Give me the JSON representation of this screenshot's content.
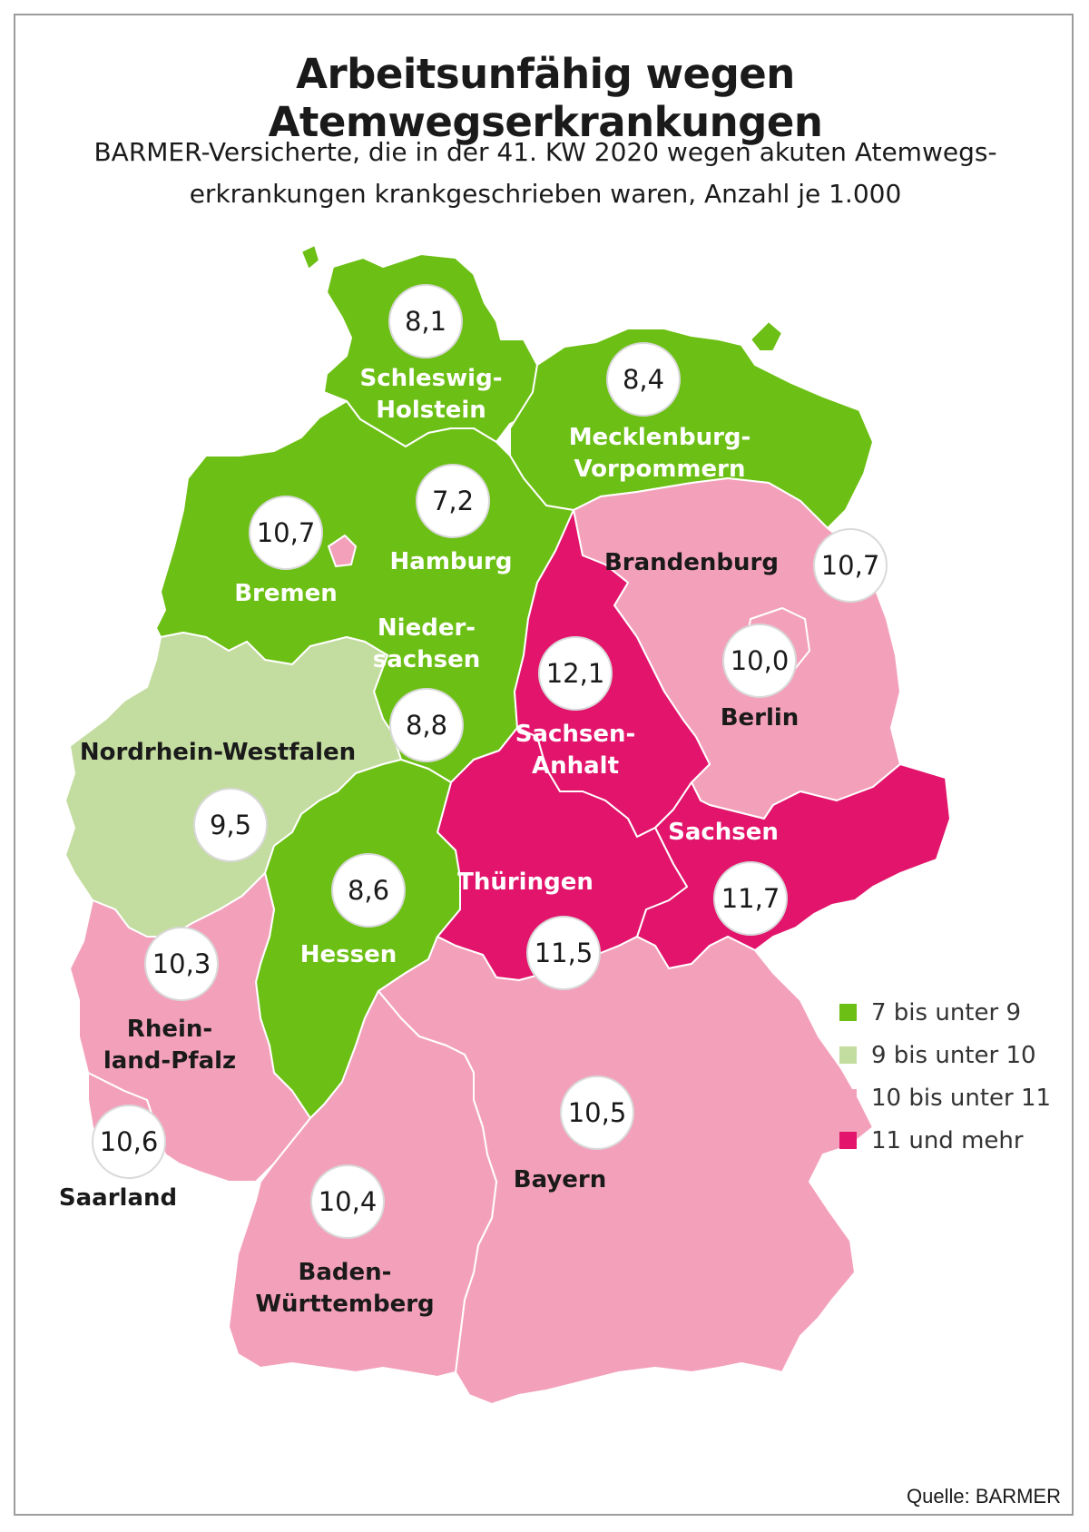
{
  "title": "Arbeitsunfähig wegen Atemwegserkrankungen",
  "subtitle_line1": "BARMER-Versicherte, die in der 41. KW 2020 wegen akuten Atemwegs-",
  "subtitle_line2": "erkrankungen krankgeschrieben waren, Anzahl je 1.000",
  "colors": {
    "class_7_9": "#6cbf14",
    "class_9_10": "#c3dc9f",
    "class_10_11": "#f3a1bb",
    "class_11_plus": "#e2146b"
  },
  "legend": [
    {
      "label": "7 bis unter 9",
      "color": "#6cbf14"
    },
    {
      "label": "9 bis unter 10",
      "color": "#c3dc9f"
    },
    {
      "label": "10 bis unter 11",
      "color": "#f3a1bb"
    },
    {
      "label": "11 und mehr",
      "color": "#e2146b"
    }
  ],
  "regions": {
    "schleswig_holstein": {
      "name_line1": "Schleswig-",
      "name_line2": "Holstein",
      "value": "8,1"
    },
    "mecklenburg_vorpommern": {
      "name_line1": "Mecklenburg-",
      "name_line2": "Vorpommern",
      "value": "8,4"
    },
    "hamburg": {
      "name": "Hamburg",
      "value": "7,2"
    },
    "bremen": {
      "name": "Bremen",
      "value": "10,7"
    },
    "brandenburg": {
      "name": "Brandenburg",
      "value": "10,7"
    },
    "niedersachsen": {
      "name_line1": "Nieder-",
      "name_line2": "sachsen",
      "value": "8,8"
    },
    "sachsen_anhalt": {
      "name_line1": "Sachsen-",
      "name_line2": "Anhalt",
      "value": "12,1"
    },
    "berlin": {
      "name": "Berlin",
      "value": "10,0"
    },
    "nordrhein_westfalen": {
      "name": "Nordrhein-Westfalen",
      "value": "9,5"
    },
    "sachsen": {
      "name": "Sachsen",
      "value": "11,7"
    },
    "hessen": {
      "name": "Hessen",
      "value": "8,6"
    },
    "thueringen": {
      "name": "Thüringen",
      "value": "11,5"
    },
    "rheinland_pfalz": {
      "name_line1": "Rhein-",
      "name_line2": "land-Pfalz",
      "value": "10,3"
    },
    "saarland": {
      "name": "Saarland",
      "value": "10,6"
    },
    "bayern": {
      "name": "Bayern",
      "value": "10,5"
    },
    "baden_wuerttemberg": {
      "name_line1": "Baden-",
      "name_line2": "Württemberg",
      "value": "10,4"
    }
  },
  "source": "Quelle: BARMER"
}
